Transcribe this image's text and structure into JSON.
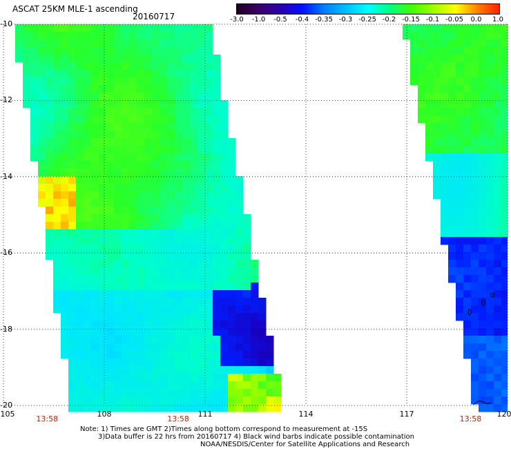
{
  "title": "ASCAT 25KM MLE-1 ascending",
  "date": "20160717",
  "colorbar": {
    "labels": [
      "-3.0",
      "-1.0",
      "-0.5",
      "-0.4",
      "-0.35",
      "-0.3",
      "-0.25",
      "-0.2",
      "-0.15",
      "-0.1",
      "-0.05",
      "0.0",
      "1.0"
    ],
    "colors": [
      "#220022",
      "#3a006a",
      "#2a00b0",
      "#0010ff",
      "#0080ff",
      "#00c0ff",
      "#00ffff",
      "#00ff80",
      "#40ff00",
      "#a0ff00",
      "#ffff00",
      "#ff8000",
      "#ff2000"
    ]
  },
  "map": {
    "lat_labels": [
      "-10",
      "-12",
      "-14",
      "-16",
      "-18",
      "-20"
    ],
    "lon_labels": [
      "105",
      "108",
      "111",
      "114",
      "117",
      "120"
    ],
    "lat_range": [
      -20,
      -10
    ],
    "lon_range": [
      105,
      120
    ],
    "grid": "dotted",
    "times": [
      "13:58",
      "13:58",
      "13:58"
    ]
  },
  "notes": {
    "line1": "Note: 1) Times are GMT 2)Times along bottom correspond to measurement at -15S",
    "line2": "3)Data buffer is 22 hrs from 20160717 4) Black wind barbs indicate possible contamination",
    "line3": "NOAA/NESDIS/Center for Satellite Applications and Research"
  }
}
